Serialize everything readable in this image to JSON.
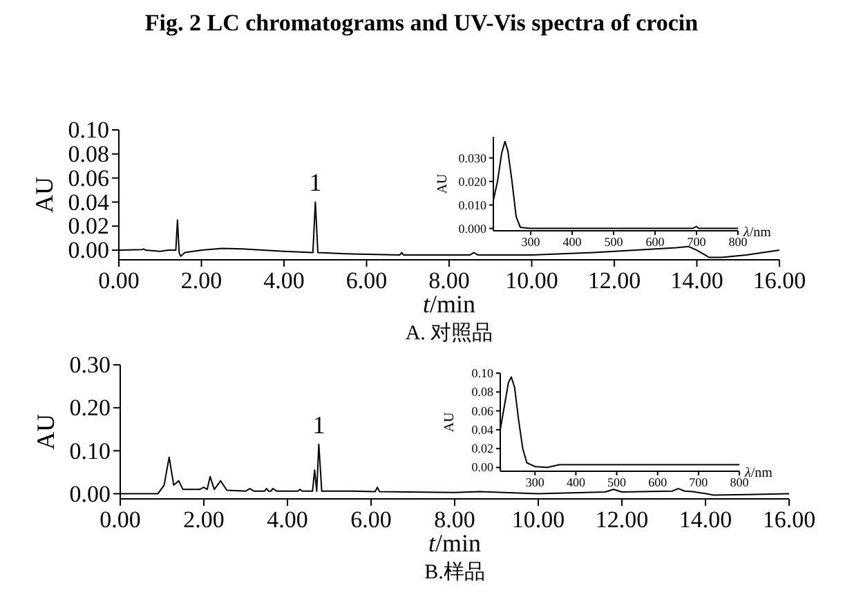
{
  "chart_data": [
    {
      "type": "line",
      "title": "Fig. 2    LC chromatograms and UV-Vis spectra of crocin",
      "xlabel": "*t*/min",
      "ylabel": "AU",
      "color": "#000000",
      "x": [
        0,
        0.55,
        0.6,
        0.65,
        1.0,
        1.2,
        1.38,
        1.42,
        1.46,
        1.5,
        1.6,
        2.0,
        2.5,
        3.0,
        4.0,
        4.7,
        4.76,
        4.82,
        5.5,
        6.8,
        6.85,
        6.9,
        8.5,
        8.6,
        8.7,
        10,
        11.5,
        12.5,
        13.5,
        13.8,
        14.0,
        14.3,
        14.6,
        15.2,
        16
      ],
      "values": [
        0,
        0.0005,
        0.001,
        0,
        -0.001,
        0,
        0,
        0.025,
        -0.002,
        -0.005,
        -0.002,
        0,
        0.0015,
        0.001,
        -0.001,
        -0.002,
        0.04,
        -0.002,
        -0.003,
        -0.004,
        -0.002,
        -0.004,
        -0.004,
        -0.002,
        -0.004,
        -0.004,
        -0.002,
        0,
        0.002,
        0.003,
        0,
        -0.006,
        -0.006,
        -0.004,
        0
      ],
      "xlim": [
        0,
        16
      ],
      "ylim": [
        -0.008,
        0.1
      ],
      "xticks": [
        {
          "value": 0,
          "label": "0.00"
        },
        {
          "value": 2,
          "label": "2.00"
        },
        {
          "value": 4,
          "label": "4.00"
        },
        {
          "value": 6,
          "label": "6.00"
        },
        {
          "value": 8,
          "label": "8.00"
        },
        {
          "value": 10,
          "label": "10.00"
        },
        {
          "value": 12,
          "label": "12.00"
        },
        {
          "value": 14,
          "label": "14.00"
        },
        {
          "value": 16,
          "label": "16.00"
        }
      ],
      "yticks": [
        {
          "value": 0,
          "label": "0.00"
        },
        {
          "value": 0.02,
          "label": "0.02"
        },
        {
          "value": 0.04,
          "label": "0.04"
        },
        {
          "value": 0.06,
          "label": "0.06"
        },
        {
          "value": 0.08,
          "label": "0.08"
        },
        {
          "value": 0.1,
          "label": "0.10"
        }
      ],
      "annotations": [
        {
          "text": "1",
          "x": 4.76,
          "y": 0.04
        },
        "A. 对照品"
      ]
    },
    {
      "type": "line",
      "ylabel": "AU",
      "xlabel": "*λ*/nm",
      "color": "#000000",
      "x": [
        210,
        220,
        230,
        238,
        245,
        255,
        265,
        275,
        300,
        400,
        600,
        690,
        700,
        705,
        800
      ],
      "values": [
        0.012,
        0.02,
        0.032,
        0.037,
        0.033,
        0.02,
        0.005,
        0.0005,
        0,
        0,
        0,
        0,
        0.0008,
        0,
        0
      ],
      "xlim": [
        210,
        800
      ],
      "ylim": [
        -0.001,
        0.039
      ],
      "xticks": [
        300,
        400,
        500,
        600,
        700,
        800
      ],
      "yticks": [
        {
          "value": 0,
          "label": "0.000"
        },
        {
          "value": 0.01,
          "label": "0.010"
        },
        {
          "value": 0.02,
          "label": "0.020"
        },
        {
          "value": 0.03,
          "label": "0.030"
        }
      ]
    },
    {
      "type": "line",
      "xlabel": "*t*/min",
      "ylabel": "AU",
      "color": "#000000",
      "x": [
        0,
        0.9,
        1.05,
        1.17,
        1.28,
        1.4,
        1.5,
        1.9,
        2.0,
        2.08,
        2.15,
        2.25,
        2.4,
        2.55,
        3.0,
        3.1,
        3.2,
        3.45,
        3.5,
        3.55,
        3.6,
        3.65,
        3.75,
        4.25,
        4.3,
        4.35,
        4.6,
        4.65,
        4.7,
        4.75,
        4.82,
        5.5,
        6.1,
        6.15,
        6.2,
        8.0,
        8.6,
        10,
        11.6,
        11.8,
        12.0,
        13.2,
        13.35,
        13.5,
        13.7,
        14.2,
        15.0,
        16
      ],
      "values": [
        0,
        0,
        0.02,
        0.085,
        0.02,
        0.03,
        0.01,
        0.01,
        0.015,
        0.01,
        0.04,
        0.01,
        0.03,
        0.008,
        0.006,
        0.012,
        0.006,
        0.006,
        0.012,
        0.006,
        0.006,
        0.012,
        0.006,
        0.006,
        0.01,
        0.006,
        0.006,
        0.055,
        0.006,
        0.115,
        0.006,
        0.006,
        0.005,
        0.015,
        0.005,
        0.003,
        0.005,
        0,
        0.004,
        0.01,
        0.004,
        0.006,
        0.012,
        0.006,
        0.005,
        -0.003,
        -0.002,
        0
      ],
      "xlim": [
        0,
        16
      ],
      "ylim": [
        -0.012,
        0.3
      ],
      "xticks": [
        {
          "value": 0,
          "label": "0.00"
        },
        {
          "value": 2,
          "label": "2.00"
        },
        {
          "value": 4,
          "label": "4.00"
        },
        {
          "value": 6,
          "label": "6.00"
        },
        {
          "value": 8,
          "label": "8.00"
        },
        {
          "value": 10,
          "label": "10.00"
        },
        {
          "value": 12,
          "label": "12.00"
        },
        {
          "value": 14,
          "label": "14.00"
        },
        {
          "value": 16,
          "label": "16.00"
        }
      ],
      "yticks": [
        {
          "value": 0,
          "label": "0.00"
        },
        {
          "value": 0.1,
          "label": "0.10"
        },
        {
          "value": 0.2,
          "label": "0.20"
        },
        {
          "value": 0.3,
          "label": "0.30"
        }
      ],
      "annotations": [
        {
          "text": "1",
          "x": 4.75,
          "y": 0.115
        },
        "B.样品"
      ]
    },
    {
      "type": "line",
      "ylabel": "AU",
      "xlabel": "*λ*/nm",
      "color": "#000000",
      "x": [
        215,
        225,
        235,
        242,
        250,
        260,
        270,
        280,
        300,
        330,
        360,
        400,
        800
      ],
      "values": [
        0.04,
        0.065,
        0.09,
        0.096,
        0.085,
        0.05,
        0.02,
        0.005,
        0.001,
        0,
        0.003,
        0.003,
        0.003
      ],
      "xlim": [
        215,
        800
      ],
      "ylim": [
        -0.004,
        0.1
      ],
      "xticks": [
        300,
        400,
        500,
        600,
        700,
        800
      ],
      "yticks": [
        {
          "value": 0,
          "label": "0.00"
        },
        {
          "value": 0.02,
          "label": "0.02"
        },
        {
          "value": 0.04,
          "label": "0.04"
        },
        {
          "value": 0.06,
          "label": "0.06"
        },
        {
          "value": 0.08,
          "label": "0.08"
        },
        {
          "value": 0.1,
          "label": "0.10"
        }
      ]
    }
  ]
}
